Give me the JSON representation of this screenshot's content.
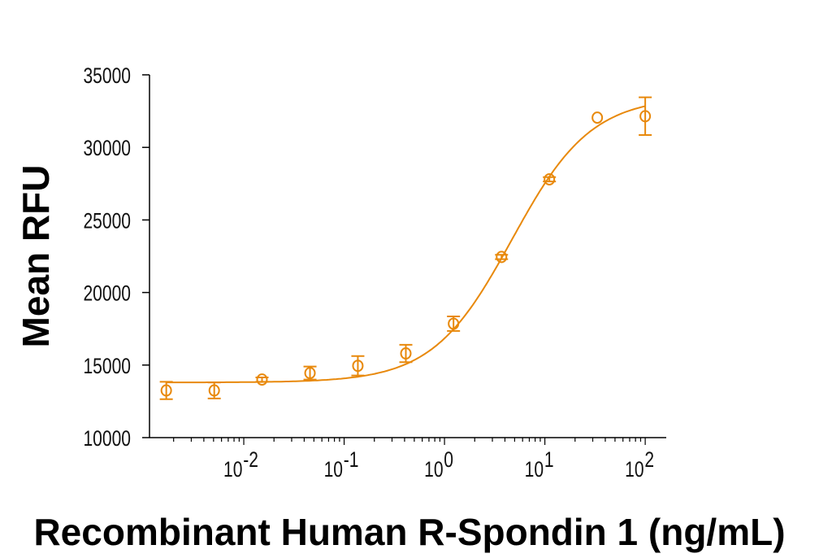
{
  "chart_data": {
    "type": "scatter",
    "title": "",
    "xlabel": "Recombinant Human R-Spondin 1 (ng/mL)",
    "ylabel": "Mean RFU",
    "xscale": "log",
    "xlim": [
      0.00115,
      162
    ],
    "ylim": [
      10000,
      35000
    ],
    "grid": false,
    "legend": "none",
    "color": "#E8890C",
    "x_ticks": [
      {
        "value": 0.01,
        "base": "10",
        "exp": "-2"
      },
      {
        "value": 0.1,
        "base": "10",
        "exp": "-1"
      },
      {
        "value": 1,
        "base": "10",
        "exp": "0"
      },
      {
        "value": 10,
        "base": "10",
        "exp": "1"
      },
      {
        "value": 100,
        "base": "10",
        "exp": "2"
      }
    ],
    "y_ticks": [
      "10000",
      "15000",
      "20000",
      "25000",
      "30000",
      "35000"
    ],
    "series": [
      {
        "marker": "open-circle",
        "x": [
          0.00169,
          0.00508,
          0.0152,
          0.0457,
          0.137,
          0.412,
          1.23,
          3.7,
          11.1,
          33.3,
          100
        ],
        "y": [
          13250,
          13250,
          14000,
          14450,
          14950,
          15800,
          17850,
          22450,
          27800,
          32050,
          32150
        ],
        "error": [
          600,
          550,
          150,
          450,
          670,
          600,
          500,
          150,
          150,
          0,
          1300
        ]
      }
    ],
    "fit": {
      "model": "4PL",
      "bottom": 13800,
      "top": 33500,
      "ec50": 4.7,
      "hill": 1.1
    }
  }
}
